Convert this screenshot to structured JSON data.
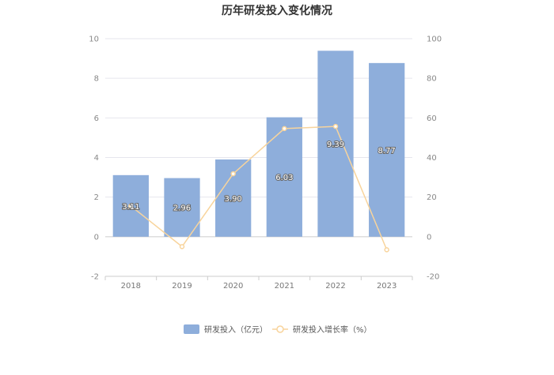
{
  "chart_data": {
    "type": "bar",
    "title": "历年研发投入变化情况",
    "categories": [
      "2018",
      "2019",
      "2020",
      "2021",
      "2022",
      "2023"
    ],
    "series": [
      {
        "name": "研发投入（亿元）",
        "type": "bar",
        "axis": "left",
        "values": [
          3.11,
          2.96,
          3.9,
          6.03,
          9.39,
          8.77
        ],
        "labels": [
          "3.11",
          "2.96",
          "3.90",
          "6.03",
          "9.39",
          "8.77"
        ],
        "color": "#8eaedb"
      },
      {
        "name": "研发投入增长率（%）",
        "type": "line",
        "axis": "right",
        "values": [
          15.5,
          -5.0,
          31.8,
          54.6,
          55.7,
          -6.6
        ],
        "color": "#f8d49c"
      }
    ],
    "yleft": {
      "ylim": [
        -2,
        10
      ],
      "ticks": [
        "10",
        "8",
        "6",
        "4",
        "2",
        "0",
        "-2"
      ]
    },
    "yright": {
      "ylim": [
        -20,
        100
      ],
      "ticks": [
        "100",
        "80",
        "60",
        "40",
        "20",
        "0",
        "-20"
      ]
    },
    "grid": true,
    "legend": "bottom"
  }
}
